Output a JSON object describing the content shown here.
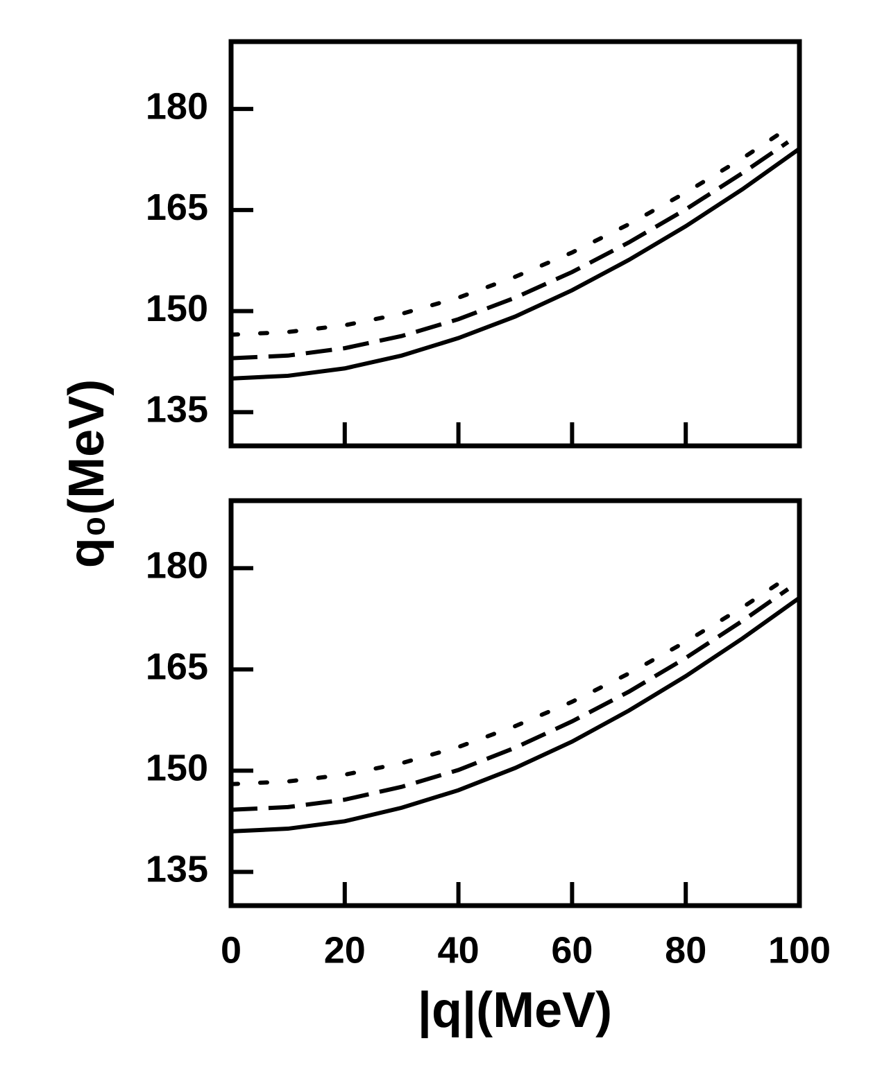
{
  "chart_data": [
    {
      "type": "line",
      "ylabel": "q₀(MeV)",
      "xlim": [
        0,
        100
      ],
      "xticks": [
        0,
        20,
        40,
        60,
        80,
        100
      ],
      "ylim": [
        130,
        190
      ],
      "yticks": [
        135,
        150,
        165,
        180
      ],
      "series": [
        {
          "color": "#000000",
          "line_style": "solid",
          "x": [
            0,
            10,
            20,
            30,
            40,
            50,
            60,
            70,
            80,
            90,
            100
          ],
          "values": [
            140.0,
            140.4,
            141.5,
            143.4,
            146.0,
            149.2,
            153.1,
            157.6,
            162.6,
            168.1,
            174.1
          ]
        },
        {
          "color": "#000000",
          "line_style": "dashed",
          "x": [
            0,
            10,
            20,
            30,
            40,
            50,
            60,
            70,
            80,
            90,
            98
          ],
          "values": [
            143.0,
            143.4,
            144.5,
            146.3,
            148.8,
            152.0,
            155.8,
            160.2,
            165.1,
            170.5,
            175.1
          ]
        },
        {
          "color": "#000000",
          "line_style": "dotted",
          "x": [
            0,
            10,
            20,
            30,
            40,
            50,
            60,
            70,
            80,
            90,
            97
          ],
          "values": [
            146.5,
            146.9,
            147.9,
            149.6,
            152.0,
            155.1,
            158.7,
            162.9,
            167.6,
            172.7,
            176.6
          ]
        }
      ]
    },
    {
      "type": "line",
      "xlabel": "|q|(MeV)",
      "xlim": [
        0,
        100
      ],
      "xticks": [
        0,
        20,
        40,
        60,
        80,
        100
      ],
      "ylim": [
        130,
        190
      ],
      "yticks": [
        135,
        150,
        165,
        180
      ],
      "series": [
        {
          "color": "#000000",
          "line_style": "solid",
          "x": [
            0,
            10,
            20,
            30,
            40,
            50,
            60,
            70,
            80,
            90,
            100
          ],
          "values": [
            141.0,
            141.4,
            142.5,
            144.5,
            147.1,
            150.4,
            154.3,
            158.9,
            164.0,
            169.6,
            175.6
          ]
        },
        {
          "color": "#000000",
          "line_style": "dashed",
          "x": [
            0,
            10,
            20,
            30,
            40,
            50,
            60,
            70,
            80,
            90,
            98
          ],
          "values": [
            144.2,
            144.6,
            145.7,
            147.6,
            150.1,
            153.4,
            157.3,
            161.7,
            166.7,
            172.2,
            176.9
          ]
        },
        {
          "color": "#000000",
          "line_style": "dotted",
          "x": [
            0,
            10,
            20,
            30,
            40,
            50,
            60,
            70,
            80,
            90,
            97
          ],
          "values": [
            148.0,
            148.4,
            149.4,
            151.1,
            153.5,
            156.6,
            160.2,
            164.4,
            169.1,
            174.2,
            178.1
          ]
        }
      ]
    }
  ]
}
